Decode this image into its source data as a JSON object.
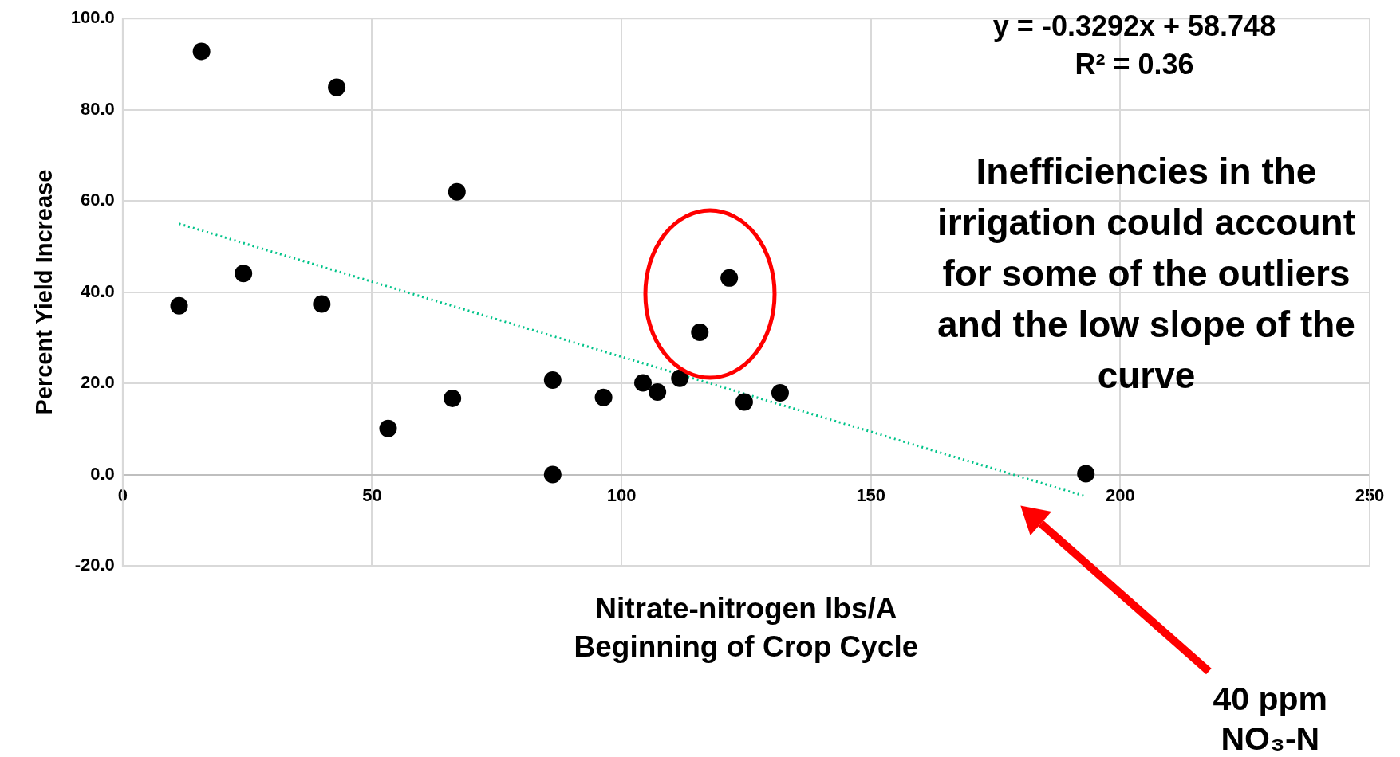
{
  "chart_data": {
    "type": "scatter",
    "xlabel": "Nitrate-nitrogen lbs/A\nBeginning of Crop Cycle",
    "ylabel": "Percent Yield Increase",
    "xlim": [
      0,
      250
    ],
    "xticks": [
      0,
      50,
      100,
      150,
      200,
      250
    ],
    "ylim": [
      -20,
      100
    ],
    "yticks": [
      {
        "value": -20,
        "label": "-20.0"
      },
      {
        "value": 0,
        "label": "0.0"
      },
      {
        "value": 20,
        "label": "20.0"
      },
      {
        "value": 40,
        "label": "40.0"
      },
      {
        "value": 60,
        "label": "60.0"
      },
      {
        "value": 80,
        "label": "80.0"
      },
      {
        "value": 100,
        "label": "100.0"
      }
    ],
    "grid": true,
    "legend": false,
    "marker": "circle",
    "series": [
      {
        "color": "#000000",
        "x": [
          15.8,
          42.9,
          67.0,
          11.3,
          24.2,
          39.9,
          53.2,
          66.1,
          86.2,
          86.2,
          96.4,
          104.3,
          107.2,
          111.7,
          115.7,
          121.6,
          124.6,
          131.8,
          193.1
        ],
        "values": [
          92.8,
          84.9,
          62.0,
          37.0,
          44.1,
          37.4,
          10.1,
          16.7,
          20.7,
          0,
          16.9,
          20.1,
          18.1,
          21.1,
          31.2,
          43.1,
          15.9,
          17.9,
          0.2
        ]
      },
      {
        "type": "line",
        "color": "#00c389",
        "line_style": "dotted",
        "marker": "none",
        "x": [
          11.3,
          193.1
        ],
        "values": [
          55.0,
          -4.8
        ]
      }
    ],
    "annotations": [
      "y = -0.3292x + 58.748\nR² = 0.36",
      "Inefficiencies in the irrigation could account for some of the outliers and the low slope of the curve",
      "40 ppm NO₃-N"
    ]
  }
}
